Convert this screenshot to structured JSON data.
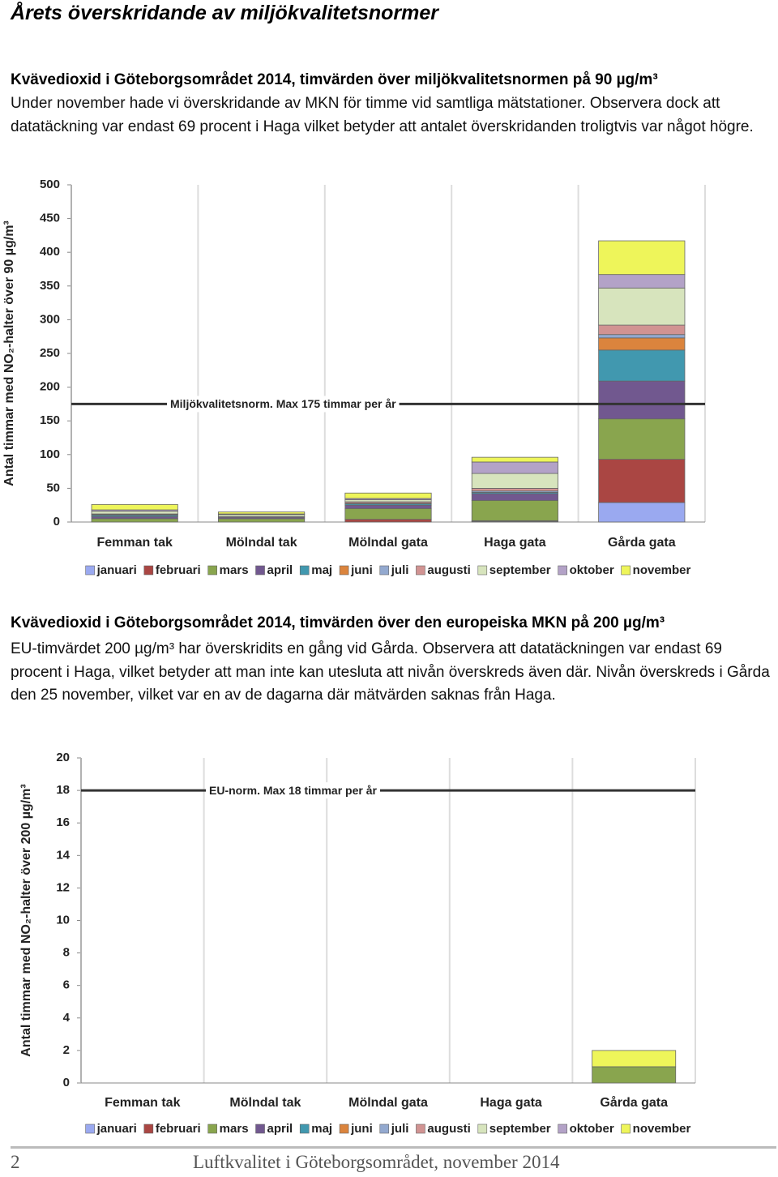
{
  "title": "Årets överskridande av miljökvalitetsnormer",
  "sections": [
    {
      "heading": "Kvävedioxid i Göteborgsområdet 2014, timvärden över miljökvalitetsnormen på 90 µg/m³",
      "text": "Under november hade vi överskridande av MKN för timme vid samtliga mätstationer. Observera dock att datatäckning var endast 69 procent i Haga vilket betyder att antalet överskridanden troligtvis var något högre."
    },
    {
      "heading": "Kvävedioxid i Göteborgsområdet 2014, timvärden över den europeiska MKN på 200 µg/m³",
      "text": "EU-timvärdet 200 µg/m³ har överskridits en gång vid Gårda. Observera att datatäckningen var endast 69 procent i Haga, vilket betyder att man inte kan utesluta att nivån överskreds även där. Nivån överskreds i Gårda den 25 november, vilket var en av de dagarna där mätvärden saknas från Haga."
    }
  ],
  "chart_data": [
    {
      "type": "stacked-bar",
      "y_label": "Antal timmar med NO₂-halter över 90 µg/m³",
      "categories": [
        "Femman tak",
        "Mölndal tak",
        "Mölndal gata",
        "Haga gata",
        "Gårda gata"
      ],
      "series": [
        {
          "name": "januari",
          "color": "#9aa9f0",
          "values": [
            0,
            0,
            0,
            1,
            29
          ]
        },
        {
          "name": "februari",
          "color": "#aa4643",
          "values": [
            0,
            0,
            4,
            1,
            64
          ]
        },
        {
          "name": "mars",
          "color": "#89a54e",
          "values": [
            5,
            5,
            16,
            30,
            60
          ]
        },
        {
          "name": "april",
          "color": "#71588f",
          "values": [
            3,
            2,
            5,
            10,
            56
          ]
        },
        {
          "name": "maj",
          "color": "#4198af",
          "values": [
            2,
            1,
            2,
            2,
            46
          ]
        },
        {
          "name": "juni",
          "color": "#db843d",
          "values": [
            0,
            0,
            0,
            0,
            18
          ]
        },
        {
          "name": "juli",
          "color": "#93a9cf",
          "values": [
            1,
            0,
            1,
            2,
            5
          ]
        },
        {
          "name": "augusti",
          "color": "#d19392",
          "values": [
            1,
            0,
            2,
            4,
            14
          ]
        },
        {
          "name": "september",
          "color": "#d7e4bd",
          "values": [
            4,
            3,
            3,
            22,
            55
          ]
        },
        {
          "name": "oktober",
          "color": "#b3a2c7",
          "values": [
            2,
            1,
            2,
            17,
            20
          ]
        },
        {
          "name": "november",
          "color": "#eef55a",
          "values": [
            8,
            3,
            8,
            7,
            50
          ]
        }
      ],
      "reference": {
        "value": 175,
        "label": "Miljökvalitetsnorm. Max 175 timmar per år"
      },
      "ylim": [
        0,
        500
      ],
      "yticks": [
        0,
        50,
        100,
        150,
        200,
        250,
        300,
        350,
        400,
        450,
        500
      ],
      "grid": true
    },
    {
      "type": "stacked-bar",
      "y_label": "Antal timmar med NO₂-halter över 200 µg/m³",
      "categories": [
        "Femman tak",
        "Mölndal tak",
        "Mölndal gata",
        "Haga gata",
        "Gårda gata"
      ],
      "series": [
        {
          "name": "januari",
          "color": "#9aa9f0",
          "values": [
            0,
            0,
            0,
            0,
            0
          ]
        },
        {
          "name": "februari",
          "color": "#aa4643",
          "values": [
            0,
            0,
            0,
            0,
            0
          ]
        },
        {
          "name": "mars",
          "color": "#89a54e",
          "values": [
            0,
            0,
            0,
            0,
            1
          ]
        },
        {
          "name": "april",
          "color": "#71588f",
          "values": [
            0,
            0,
            0,
            0,
            0
          ]
        },
        {
          "name": "maj",
          "color": "#4198af",
          "values": [
            0,
            0,
            0,
            0,
            0
          ]
        },
        {
          "name": "juni",
          "color": "#db843d",
          "values": [
            0,
            0,
            0,
            0,
            0
          ]
        },
        {
          "name": "juli",
          "color": "#93a9cf",
          "values": [
            0,
            0,
            0,
            0,
            0
          ]
        },
        {
          "name": "augusti",
          "color": "#d19392",
          "values": [
            0,
            0,
            0,
            0,
            0
          ]
        },
        {
          "name": "september",
          "color": "#d7e4bd",
          "values": [
            0,
            0,
            0,
            0,
            0
          ]
        },
        {
          "name": "oktober",
          "color": "#b3a2c7",
          "values": [
            0,
            0,
            0,
            0,
            0
          ]
        },
        {
          "name": "november",
          "color": "#eef55a",
          "values": [
            0,
            0,
            0,
            0,
            1
          ]
        }
      ],
      "reference": {
        "value": 18,
        "label": "EU-norm. Max 18 timmar per år"
      },
      "ylim": [
        0,
        20
      ],
      "yticks": [
        0,
        2,
        4,
        6,
        8,
        10,
        12,
        14,
        16,
        18,
        20
      ],
      "grid": true
    }
  ],
  "footer": {
    "page": "2",
    "text": "Luftkvalitet i Göteborgsområdet, november 2014"
  }
}
